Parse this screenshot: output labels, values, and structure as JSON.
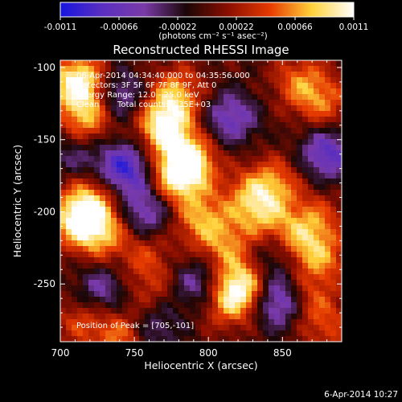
{
  "colorbar": {
    "tick_labels": [
      "-0.0011",
      "-0.00066",
      "-0.00022",
      "0.00022",
      "0.00066",
      "0.0011"
    ],
    "unit_label": "(photons cm⁻² s⁻¹ asec⁻²)",
    "range": [
      -0.0011,
      0.0011
    ],
    "colors": [
      "#1515e0",
      "#5a2fc0",
      "#7a3aa8",
      "#1a0606",
      "#8a0e00",
      "#e63a00",
      "#ffd23a",
      "#ffffff"
    ]
  },
  "chart_data": {
    "type": "heatmap",
    "title": "Reconstructed RHESSI Image",
    "xlabel": "Heliocentric X (arcsec)",
    "ylabel": "Heliocentric Y (arcsec)",
    "xlim": [
      700,
      890
    ],
    "ylim": [
      -290,
      -95
    ],
    "x_ticks": [
      "700",
      "750",
      "800",
      "850"
    ],
    "y_ticks": [
      "-100",
      "-150",
      "-200",
      "-250"
    ],
    "grid_cells": [
      50,
      50
    ],
    "peak": {
      "x": 705,
      "y": -101
    },
    "bright_sources": [
      {
        "x": 712,
        "y": -110,
        "intensity": 1.0
      },
      {
        "x": 718,
        "y": -135,
        "intensity": 0.7
      },
      {
        "x": 712,
        "y": -205,
        "intensity": 0.85
      },
      {
        "x": 728,
        "y": -215,
        "intensity": 0.6
      },
      {
        "x": 722,
        "y": -190,
        "intensity": 0.5
      },
      {
        "x": 770,
        "y": -140,
        "intensity": 0.95
      },
      {
        "x": 778,
        "y": -118,
        "intensity": 0.6
      },
      {
        "x": 786,
        "y": -165,
        "intensity": 0.95
      },
      {
        "x": 778,
        "y": -178,
        "intensity": 0.65
      },
      {
        "x": 795,
        "y": -205,
        "intensity": 0.6
      },
      {
        "x": 812,
        "y": -225,
        "intensity": 0.5
      },
      {
        "x": 822,
        "y": -252,
        "intensity": 0.85
      },
      {
        "x": 812,
        "y": -262,
        "intensity": 0.5
      },
      {
        "x": 828,
        "y": -190,
        "intensity": 0.5
      },
      {
        "x": 845,
        "y": -180,
        "intensity": 0.5
      },
      {
        "x": 838,
        "y": -205,
        "intensity": 0.45
      },
      {
        "x": 858,
        "y": -220,
        "intensity": 0.55
      },
      {
        "x": 876,
        "y": -232,
        "intensity": 0.5
      },
      {
        "x": 866,
        "y": -260,
        "intensity": 0.45
      },
      {
        "x": 873,
        "y": -205,
        "intensity": 0.4
      },
      {
        "x": 862,
        "y": -110,
        "intensity": 0.5
      },
      {
        "x": 878,
        "y": -125,
        "intensity": 0.45
      },
      {
        "x": 742,
        "y": -285,
        "intensity": 0.55
      },
      {
        "x": 715,
        "y": -275,
        "intensity": 0.4
      },
      {
        "x": 760,
        "y": -255,
        "intensity": 0.3
      },
      {
        "x": 758,
        "y": -230,
        "intensity": 0.35
      },
      {
        "x": 880,
        "y": -280,
        "intensity": 0.35
      }
    ],
    "dim_regions": [
      {
        "x": 743,
        "y": -170,
        "intensity": -0.85
      },
      {
        "x": 740,
        "y": -120,
        "intensity": -0.55
      },
      {
        "x": 758,
        "y": -200,
        "intensity": -0.6
      },
      {
        "x": 815,
        "y": -135,
        "intensity": -0.6
      },
      {
        "x": 795,
        "y": -250,
        "intensity": -0.55
      },
      {
        "x": 848,
        "y": -262,
        "intensity": -0.8
      },
      {
        "x": 880,
        "y": -160,
        "intensity": -0.7
      },
      {
        "x": 728,
        "y": -255,
        "intensity": -0.5
      },
      {
        "x": 845,
        "y": -228,
        "intensity": -0.45
      },
      {
        "x": 762,
        "y": -280,
        "intensity": -0.45
      },
      {
        "x": 710,
        "y": -160,
        "intensity": -0.35
      }
    ]
  },
  "annotations": {
    "time_range": "06-Apr-2014 04:34:40.000 to 04:35:56.000",
    "detectors": "Detectors: 3F 5F 6F 7F 8F 9F, Att 0",
    "energy": "Energy Range: 12.0 - 25.0 keV",
    "algorithm": "Clean",
    "counts": "Total counts: 3.35E+03",
    "peak_label": "Position of Peak = [705,-101]"
  },
  "footer": {
    "timestamp": "6-Apr-2014 10:27"
  }
}
